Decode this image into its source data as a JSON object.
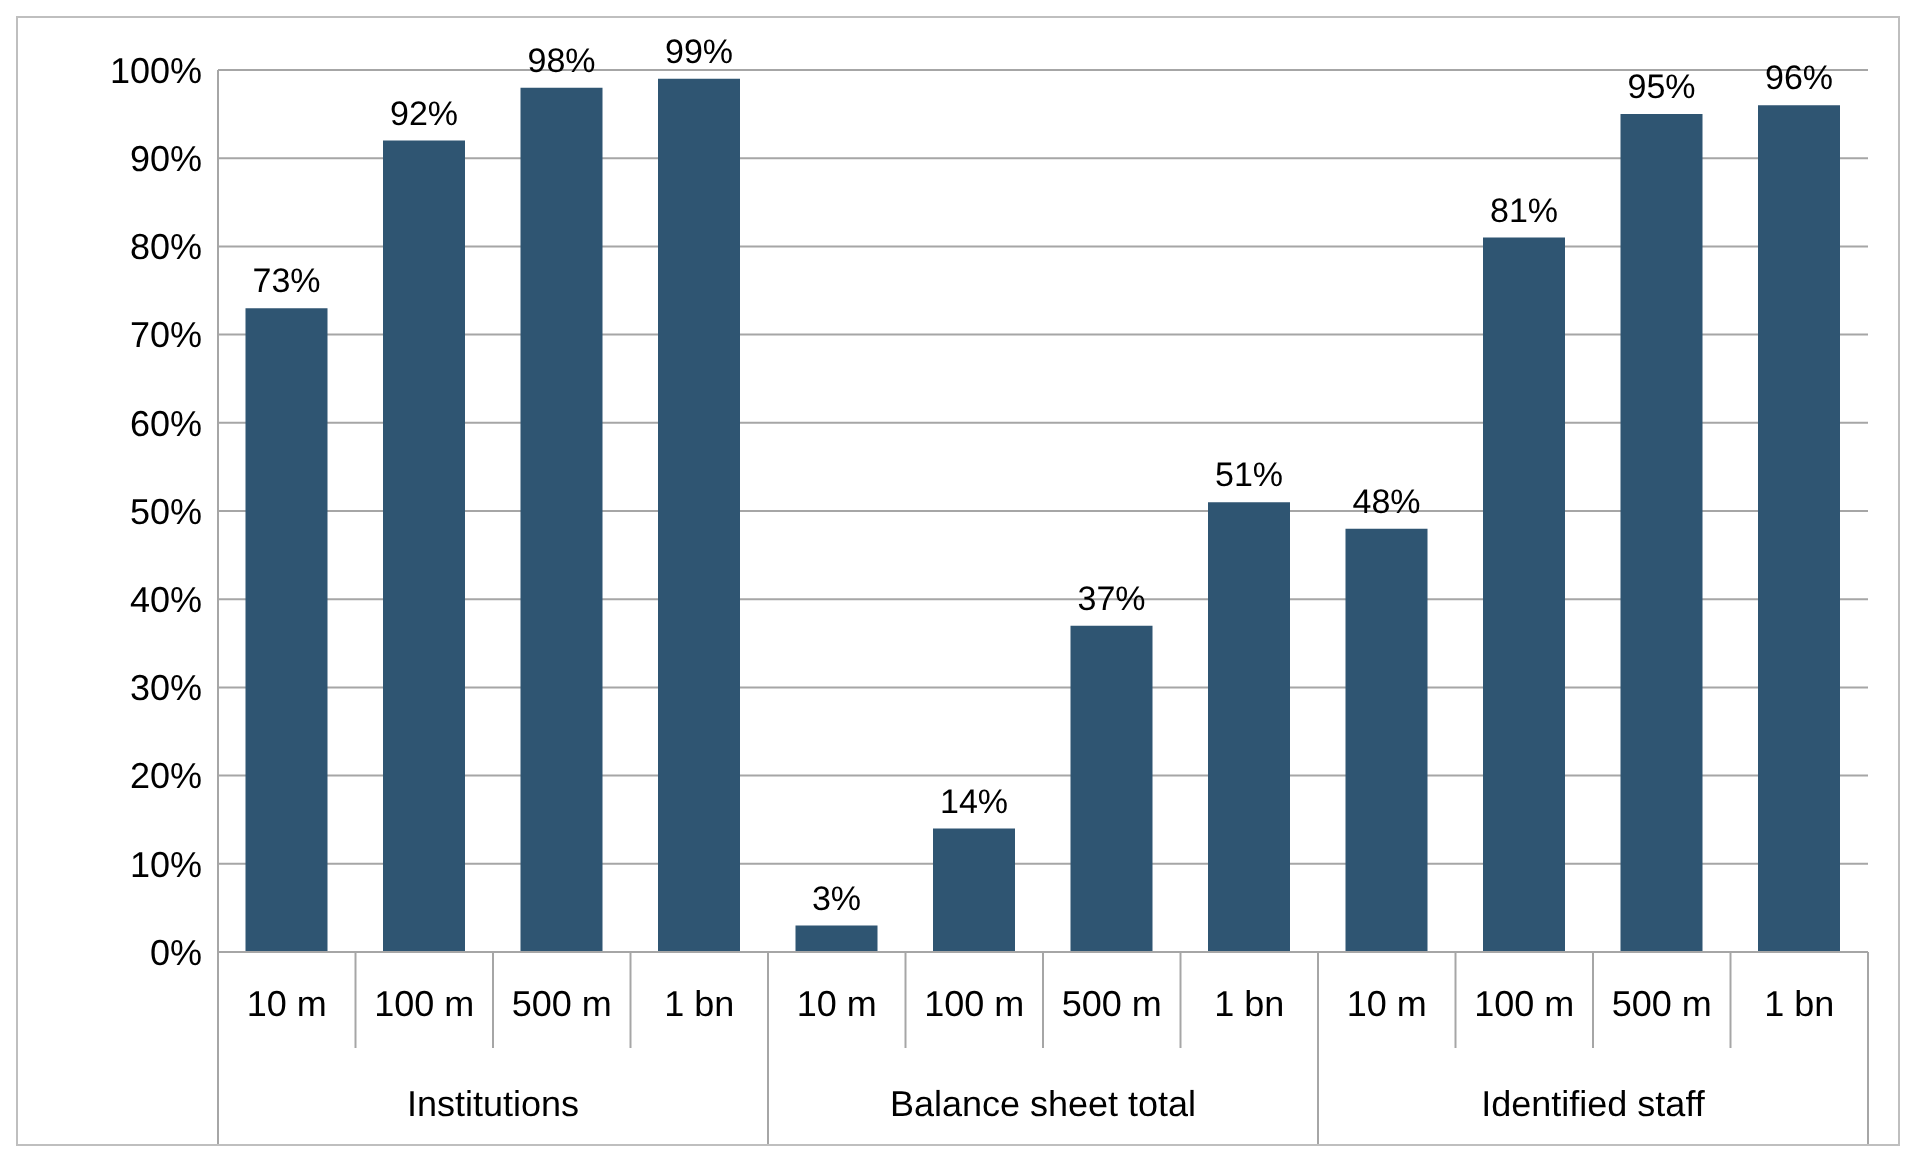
{
  "chart_data": {
    "type": "bar",
    "categories": [
      "10 m",
      "100 m",
      "500 m",
      "1 bn",
      "10 m",
      "100 m",
      "500 m",
      "1 bn",
      "10 m",
      "100 m",
      "500 m",
      "1 bn"
    ],
    "values": [
      73,
      92,
      98,
      99,
      3,
      14,
      37,
      51,
      48,
      81,
      95,
      96
    ],
    "value_labels": [
      "73%",
      "92%",
      "98%",
      "99%",
      "3%",
      "14%",
      "37%",
      "51%",
      "48%",
      "81%",
      "95%",
      "96%"
    ],
    "color": "#2f5572",
    "ylim": [
      0,
      100
    ],
    "yticks": [
      {
        "value": 0,
        "label": "0%"
      },
      {
        "value": 10,
        "label": "10%"
      },
      {
        "value": 20,
        "label": "20%"
      },
      {
        "value": 30,
        "label": "30%"
      },
      {
        "value": 40,
        "label": "40%"
      },
      {
        "value": 50,
        "label": "50%"
      },
      {
        "value": 60,
        "label": "60%"
      },
      {
        "value": 70,
        "label": "70%"
      },
      {
        "value": 80,
        "label": "80%"
      },
      {
        "value": 90,
        "label": "90%"
      },
      {
        "value": 100,
        "label": "100%"
      }
    ],
    "grid": "y",
    "annotations": [
      "Institutions",
      "Balance sheet total",
      "Identified staff"
    ]
  }
}
